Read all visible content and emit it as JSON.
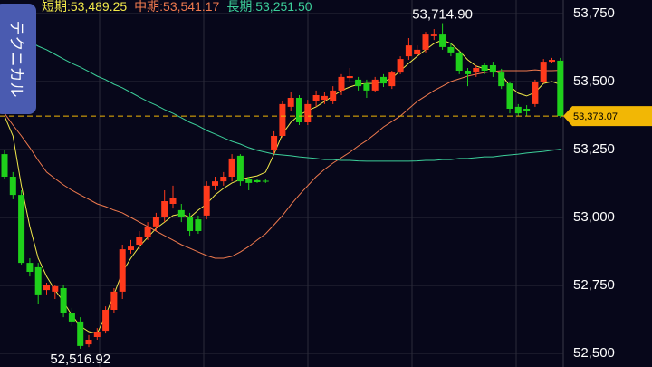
{
  "chart_data": {
    "type": "candlestick",
    "tab_label": "テクニカル",
    "up_color": "#ff3a1c",
    "down_color": "#1fd01b",
    "ylim": [
      52450,
      53800
    ],
    "yticks": [
      {
        "value": 52500,
        "label": "52,500"
      },
      {
        "value": 52750,
        "label": "52,750"
      },
      {
        "value": 53000,
        "label": "53,000"
      },
      {
        "value": 53250,
        "label": "53,250"
      },
      {
        "value": 53500,
        "label": "53,500"
      },
      {
        "value": 53750,
        "label": "53,750"
      }
    ],
    "grid": true,
    "open": [
      53233,
      53150,
      53083,
      52833,
      52817,
      52733,
      52727,
      52740,
      52650,
      52617,
      52533,
      52560,
      52583,
      52660,
      52727,
      52880,
      52900,
      52927,
      52967,
      53000,
      53050,
      53027,
      53000,
      52993,
      53007,
      53117,
      53133,
      53150,
      53227,
      53140,
      53137,
      53135,
      53250,
      53300,
      53407,
      53440,
      53350,
      53427,
      53433,
      53427,
      53467,
      53513,
      53507,
      53493,
      53467,
      53517,
      53483,
      53533,
      53593,
      53600,
      53617,
      53667,
      53673,
      53627,
      53607,
      53540,
      53533,
      53560,
      53560,
      53533,
      53493,
      53407,
      53400,
      53417,
      53500,
      53573,
      53577
    ],
    "high": [
      53250,
      53167,
      53100,
      52850,
      52833,
      52760,
      52753,
      52750,
      52667,
      52633,
      52567,
      52593,
      52673,
      52740,
      52900,
      52917,
      52950,
      52983,
      53017,
      53100,
      53117,
      53050,
      53017,
      53007,
      53133,
      53150,
      53167,
      53233,
      53233,
      53150,
      53140,
      53140,
      53317,
      53427,
      53460,
      53450,
      53433,
      53467,
      53460,
      53483,
      53527,
      53550,
      53517,
      53507,
      53517,
      53527,
      53540,
      53593,
      53660,
      53633,
      53683,
      53693,
      53714.9,
      53640,
      53617,
      53550,
      53560,
      53567,
      53573,
      53547,
      53500,
      53417,
      53413,
      53507,
      53583,
      53587,
      53587
    ],
    "low": [
      53140,
      53067,
      52827,
      52783,
      52683,
      52717,
      52700,
      52633,
      52600,
      52516.92,
      52523,
      52550,
      52573,
      52650,
      52700,
      52867,
      52883,
      52917,
      52950,
      52983,
      53033,
      52983,
      52933,
      52940,
      52993,
      53100,
      53117,
      53133,
      53117,
      53100,
      53127,
      53127,
      53233,
      53293,
      53393,
      53340,
      53340,
      53407,
      53417,
      53417,
      53450,
      53500,
      53467,
      53440,
      53460,
      53480,
      53473,
      53527,
      53580,
      53590,
      53607,
      53653,
      53617,
      53593,
      53527,
      53483,
      53517,
      53527,
      53517,
      53473,
      53383,
      53373,
      53373,
      53407,
      53493,
      53567,
      53367
    ],
    "close": [
      53150,
      53083,
      52833,
      52800,
      52717,
      52750,
      52747,
      52650,
      52617,
      52527,
      52550,
      52580,
      52660,
      52727,
      52883,
      52893,
      52927,
      52967,
      53000,
      53060,
      53073,
      53000,
      52950,
      52950,
      53117,
      53133,
      53150,
      53217,
      53133,
      53127,
      53130,
      53133,
      53300,
      53417,
      53440,
      53350,
      53417,
      53450,
      53447,
      53467,
      53517,
      53520,
      53483,
      53467,
      53507,
      53493,
      53533,
      53583,
      53633,
      53617,
      53673,
      53673,
      53627,
      53607,
      53540,
      53527,
      53550,
      53540,
      53533,
      53483,
      53400,
      53383,
      53393,
      53500,
      53573,
      53580,
      53373.07
    ],
    "series": [
      {
        "name": "短期:53,489.25",
        "color": "#f2e94a",
        "values": [
          53373,
          53300,
          53117,
          52967,
          52850,
          52783,
          52733,
          52690,
          52640,
          52600,
          52580,
          52573,
          52640,
          52717,
          52800,
          52850,
          52893,
          52927,
          52960,
          52983,
          53007,
          53013,
          53000,
          53027,
          53050,
          53083,
          53107,
          53127,
          53140,
          53147,
          53153,
          53167,
          53233,
          53307,
          53350,
          53377,
          53393,
          53407,
          53427,
          53447,
          53467,
          53480,
          53490,
          53493,
          53493,
          53500,
          53513,
          53540,
          53567,
          53593,
          53617,
          53640,
          53653,
          53640,
          53613,
          53580,
          53557,
          53547,
          53543,
          53527,
          53483,
          53457,
          53447,
          53460,
          53493,
          53500,
          53489.25
        ]
      },
      {
        "name": "中期:53,541.17",
        "color": "#f07a4e",
        "values": [
          53383,
          53340,
          53300,
          53257,
          53210,
          53167,
          53143,
          53120,
          53100,
          53083,
          53067,
          53050,
          53040,
          53027,
          53017,
          53000,
          52983,
          52967,
          52950,
          52933,
          52917,
          52900,
          52887,
          52873,
          52860,
          52850,
          52850,
          52857,
          52873,
          52893,
          52917,
          52940,
          52973,
          53007,
          53047,
          53083,
          53117,
          53150,
          53177,
          53200,
          53220,
          53240,
          53263,
          53283,
          53307,
          53333,
          53353,
          53373,
          53400,
          53427,
          53447,
          53467,
          53483,
          53500,
          53510,
          53520,
          53527,
          53533,
          53537,
          53540,
          53540,
          53540,
          53540,
          53543,
          53540,
          53540,
          53541.17
        ]
      },
      {
        "name": "長期:53,251.50",
        "color": "#3ccf9a",
        "values": [
          53693,
          53677,
          53660,
          53647,
          53630,
          53617,
          53600,
          53583,
          53567,
          53553,
          53537,
          53520,
          53507,
          53490,
          53477,
          53460,
          53443,
          53427,
          53413,
          53397,
          53383,
          53367,
          53350,
          53337,
          53320,
          53307,
          53293,
          53280,
          53270,
          53257,
          53247,
          53240,
          53233,
          53230,
          53227,
          53223,
          53220,
          53217,
          53213,
          53213,
          53210,
          53210,
          53208,
          53207,
          53207,
          53207,
          53207,
          53207,
          53207,
          53208,
          53210,
          53210,
          53213,
          53213,
          53217,
          53217,
          53220,
          53223,
          53223,
          53227,
          53230,
          53233,
          53237,
          53240,
          53243,
          53247,
          53251.5
        ]
      }
    ],
    "annotations": [
      {
        "label": "53,714.90",
        "value": 53714.9
      },
      {
        "label": "52,516.92",
        "value": 52516.92
      }
    ],
    "last_price": {
      "value": 53373.07,
      "label": "53,373.07",
      "color": "#f2b705"
    }
  }
}
